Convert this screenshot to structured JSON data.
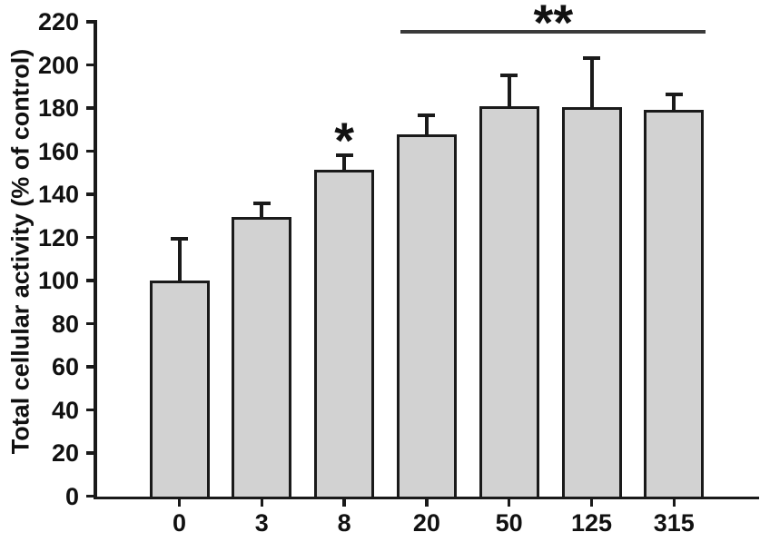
{
  "figure": {
    "background_color": "#ffffff",
    "bar_fill_color": "#d2d2d2",
    "bar_border_color": "#1a1a1a",
    "axis_color": "#1a1a1a",
    "text_color": "#111111",
    "significance_line_color": "#3a3a3a"
  },
  "chart_data": {
    "type": "bar",
    "title": "",
    "xlabel": "",
    "ylabel": "Total cellular activity (% of control)",
    "categories": [
      "0",
      "3",
      "8",
      "20",
      "50",
      "125",
      "315"
    ],
    "values": [
      100,
      129.5,
      151.5,
      168,
      181,
      180.5,
      179
    ],
    "errors_upper": [
      19.5,
      6.5,
      6.5,
      8.5,
      14,
      22.5,
      7.5
    ],
    "ylim": [
      0,
      220
    ],
    "ytick_step": 20,
    "yticks": [
      0,
      20,
      40,
      60,
      80,
      100,
      120,
      140,
      160,
      180,
      200,
      220
    ],
    "grid": false,
    "legend": null,
    "annotations": {
      "single_star": {
        "text": "*",
        "category": "8",
        "category_index": 2,
        "meaning": "significance marker above bar"
      },
      "double_star_bracket": {
        "text": "**",
        "from_category": "20",
        "to_category": "315",
        "from_index": 3,
        "to_index": 6,
        "meaning": "significance marker above horizontal bracket line spanning bars"
      }
    }
  }
}
